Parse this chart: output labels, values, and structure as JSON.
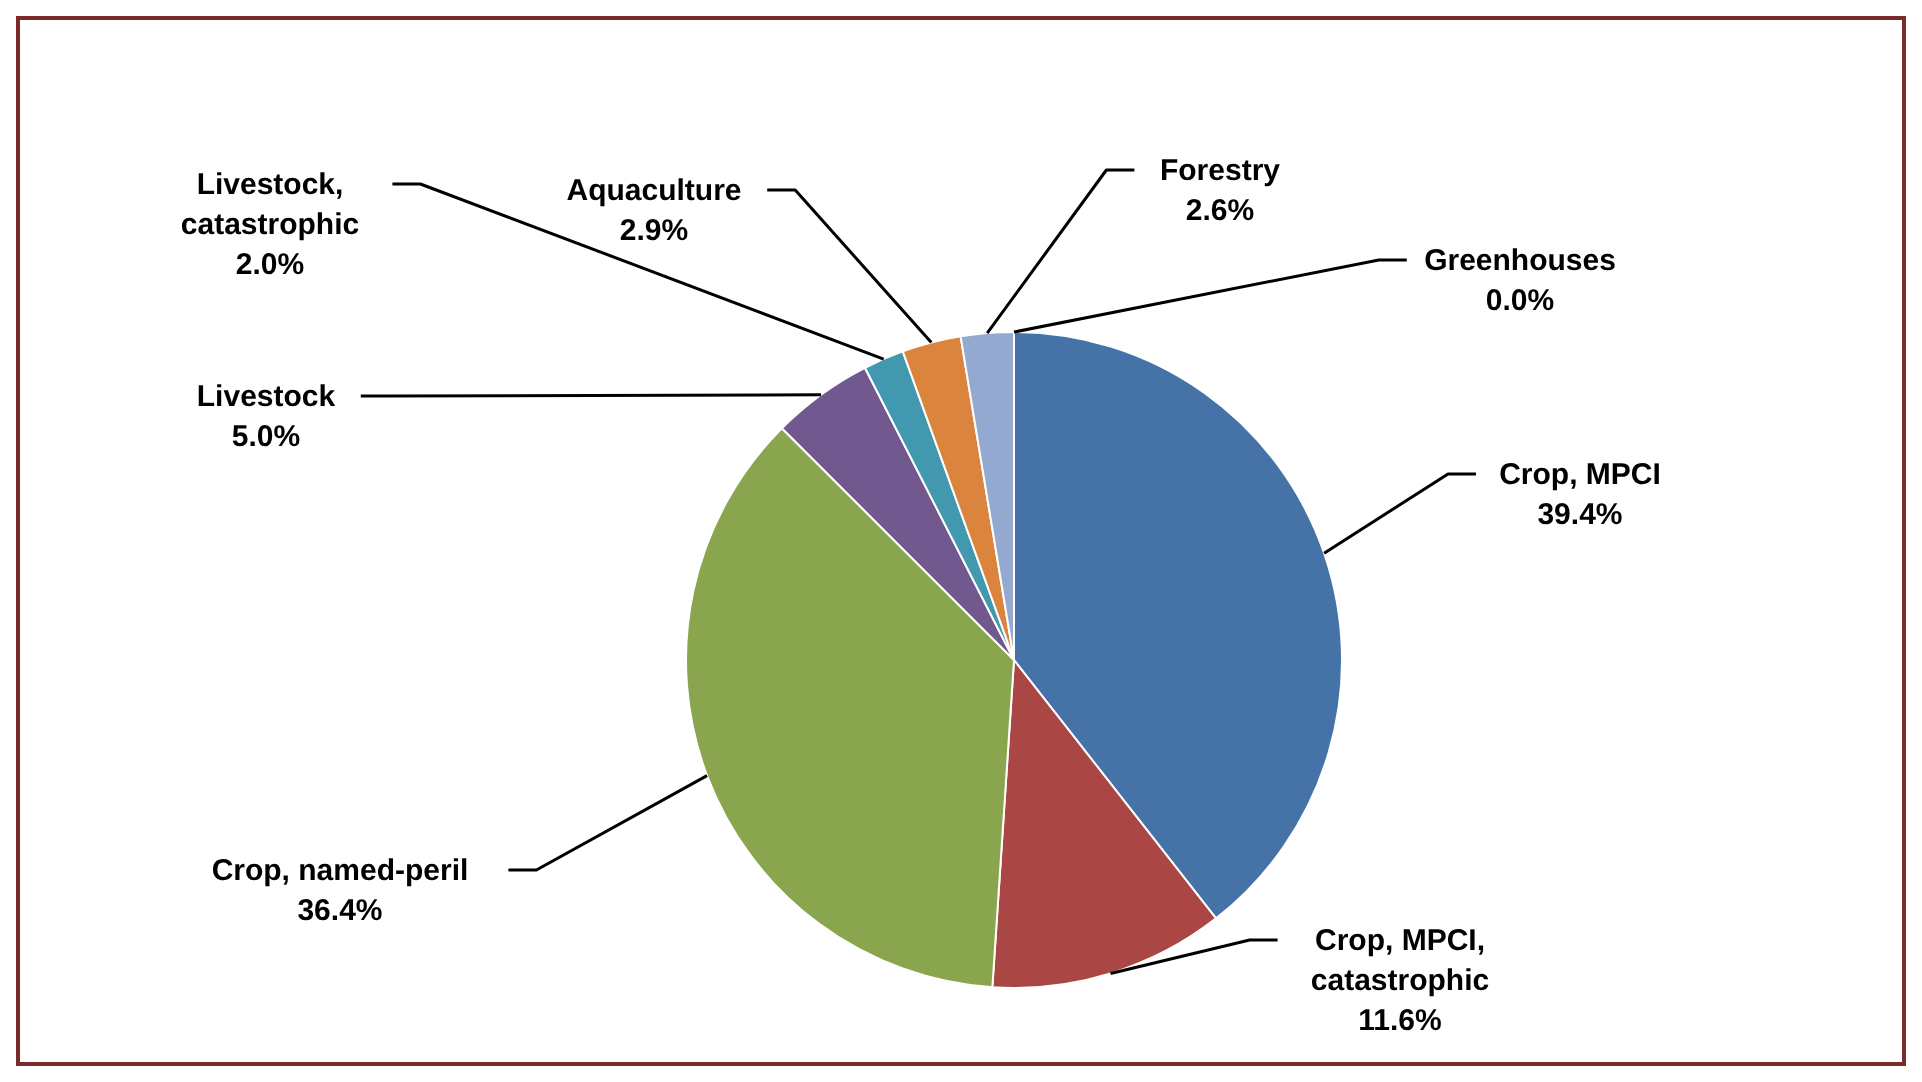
{
  "chart_data": {
    "type": "pie",
    "categories": [
      "Crop, MPCI",
      "Crop, MPCI, catastrophic",
      "Crop, named-peril",
      "Livestock",
      "Livestock, catastrophic",
      "Aquaculture",
      "Forestry",
      "Greenhouses"
    ],
    "values": [
      39.4,
      11.6,
      36.4,
      5.0,
      2.0,
      2.9,
      2.6,
      0.0
    ],
    "value_labels": [
      "39.4%",
      "11.6%",
      "36.4%",
      "5.0%",
      "2.0%",
      "2.9%",
      "2.6%",
      "0.0%"
    ],
    "colors": [
      "#4572a7",
      "#aa4643",
      "#89a54e",
      "#71588f",
      "#4198af",
      "#db843d",
      "#93a9cf",
      "#b9cd96"
    ],
    "legend": false
  }
}
